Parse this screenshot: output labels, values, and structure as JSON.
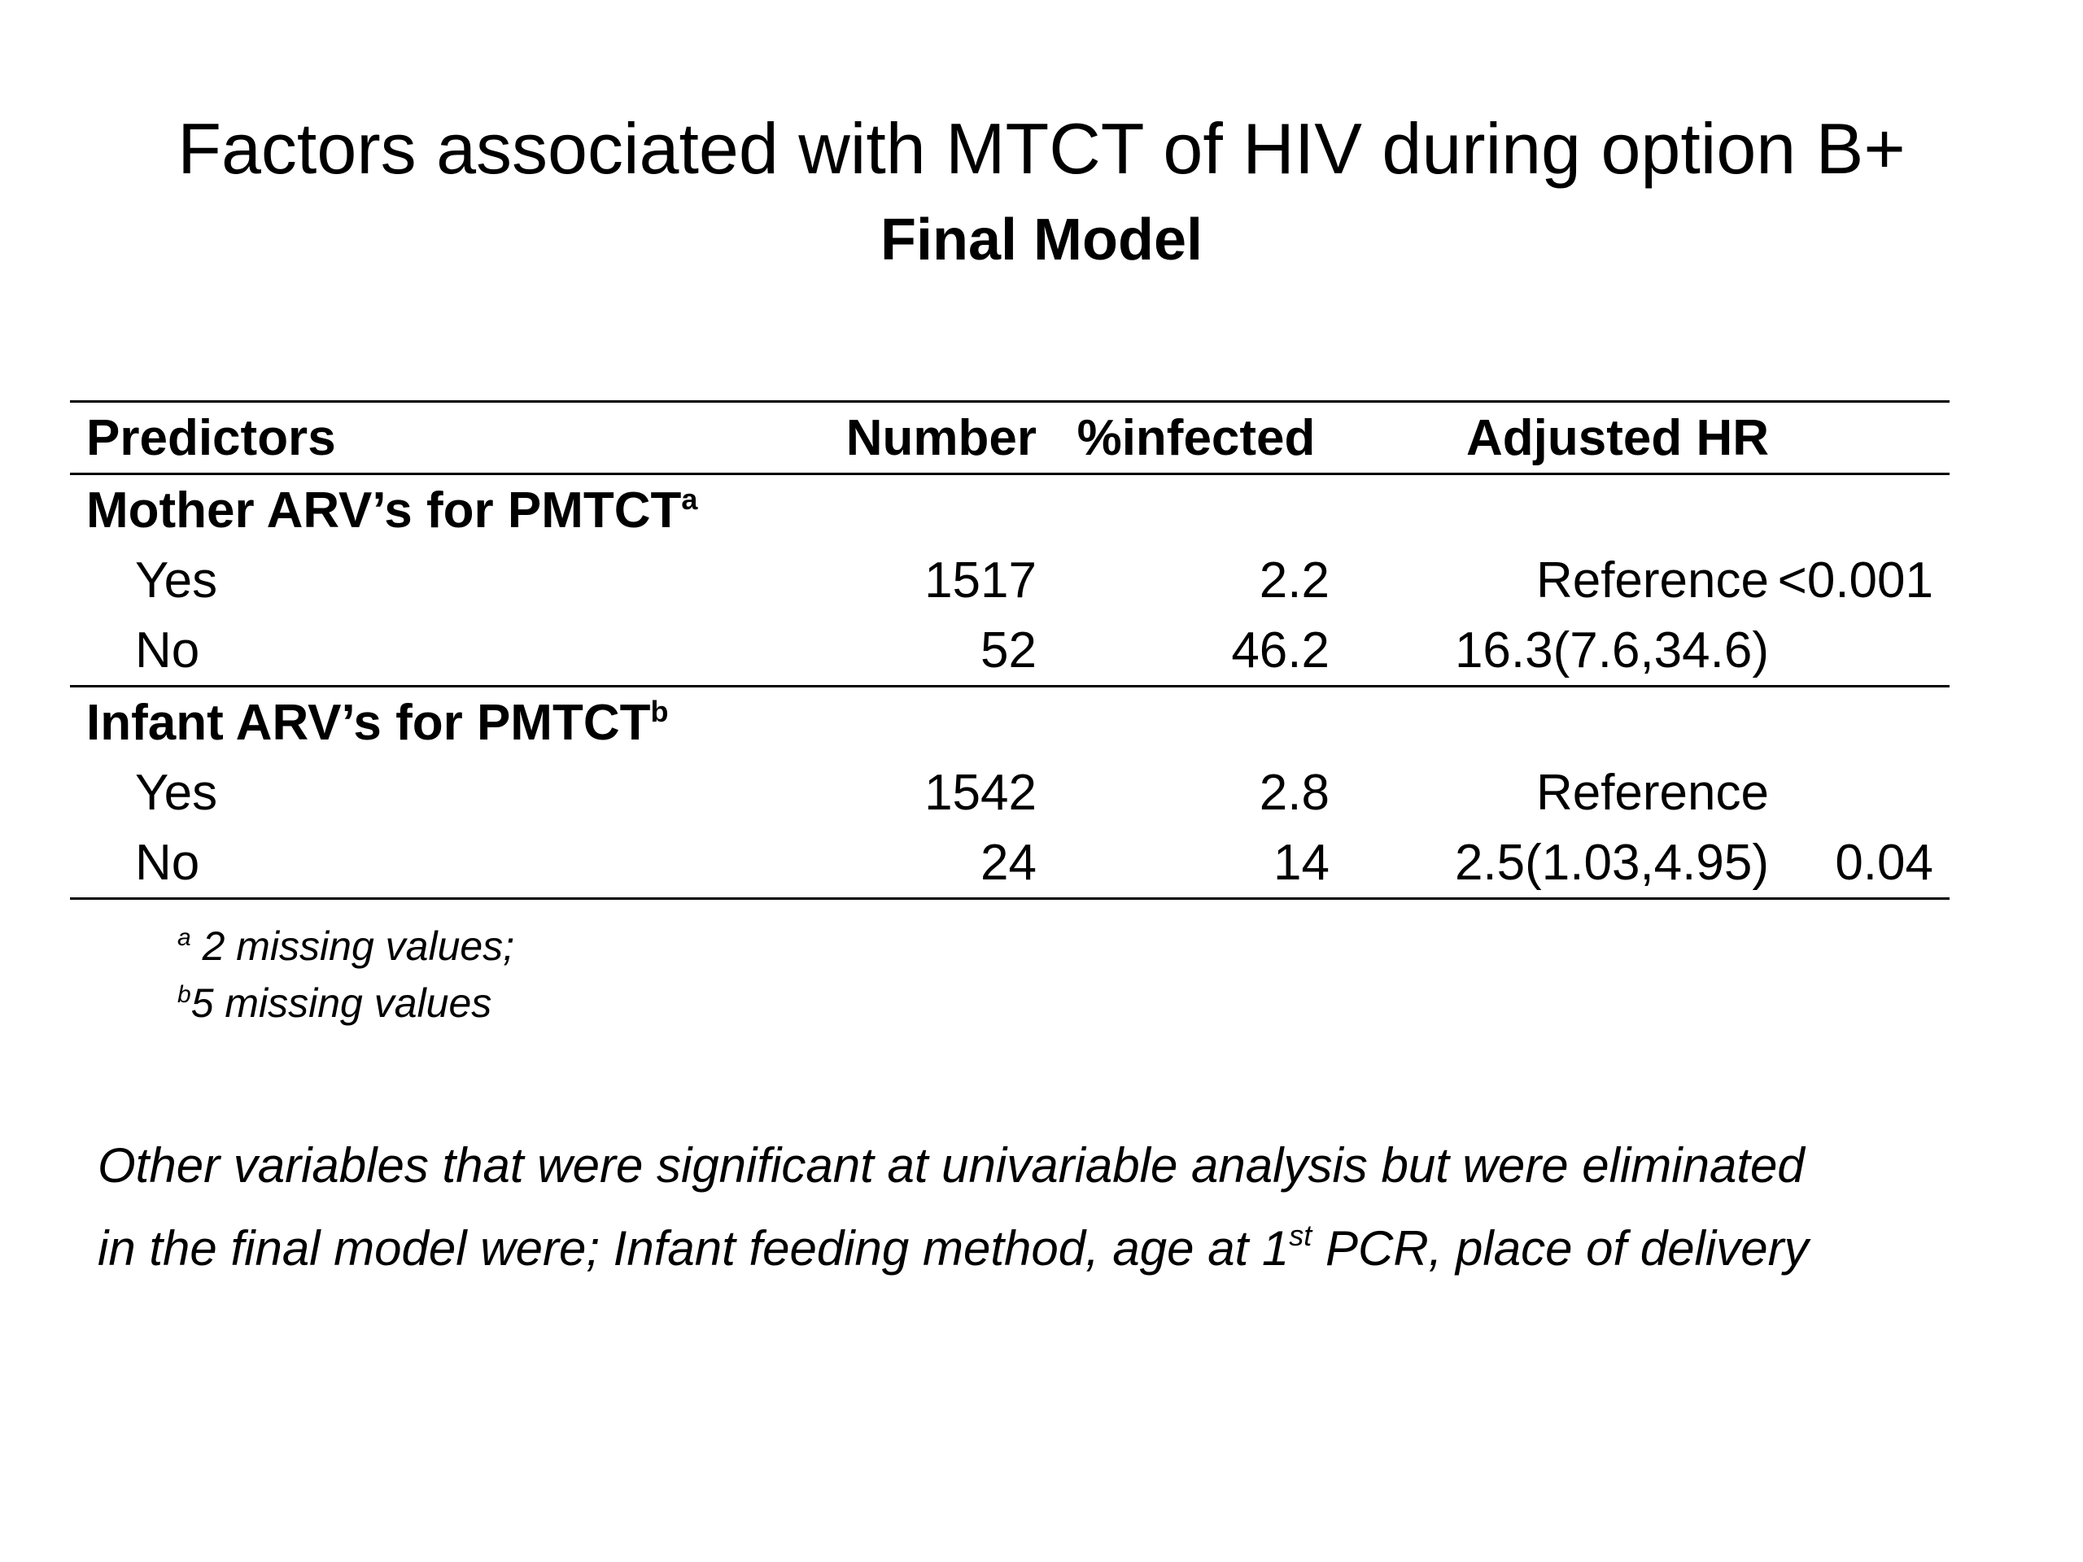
{
  "title": "Factors associated with MTCT of HIV during option B+",
  "subtitle": "Final Model",
  "table": {
    "headers": {
      "predictors": "Predictors",
      "number": "Number",
      "infected": "%infected",
      "adjusted_hr": "Adjusted HR"
    },
    "groups": [
      {
        "label": "Mother ARV’s for PMTCT",
        "marker": "a",
        "rows": [
          {
            "label": "Yes",
            "number": "1517",
            "infected": "2.2",
            "adjusted_hr": "Reference",
            "p": "<0.001"
          },
          {
            "label": "No",
            "number": "52",
            "infected": "46.2",
            "adjusted_hr": "16.3(7.6,34.6)",
            "p": ""
          }
        ]
      },
      {
        "label": "Infant ARV’s for PMTCT",
        "marker": "b",
        "rows": [
          {
            "label": "Yes",
            "number": "1542",
            "infected": "2.8",
            "adjusted_hr": "Reference",
            "p": ""
          },
          {
            "label": "No",
            "number": "24",
            "infected": "14",
            "adjusted_hr": "2.5(1.03,4.95)",
            "p": "0.04"
          }
        ]
      }
    ]
  },
  "footnotes": [
    {
      "marker": "a",
      "text": " 2 missing values;"
    },
    {
      "marker": "b",
      "text": "5 missing values"
    }
  ],
  "note": {
    "line1": "Other variables that were significant at univariable analysis but were eliminated",
    "line2_before": "in the final model were; Infant feeding method, age at 1",
    "line2_sup": "st",
    "line2_after": " PCR, place of delivery"
  }
}
